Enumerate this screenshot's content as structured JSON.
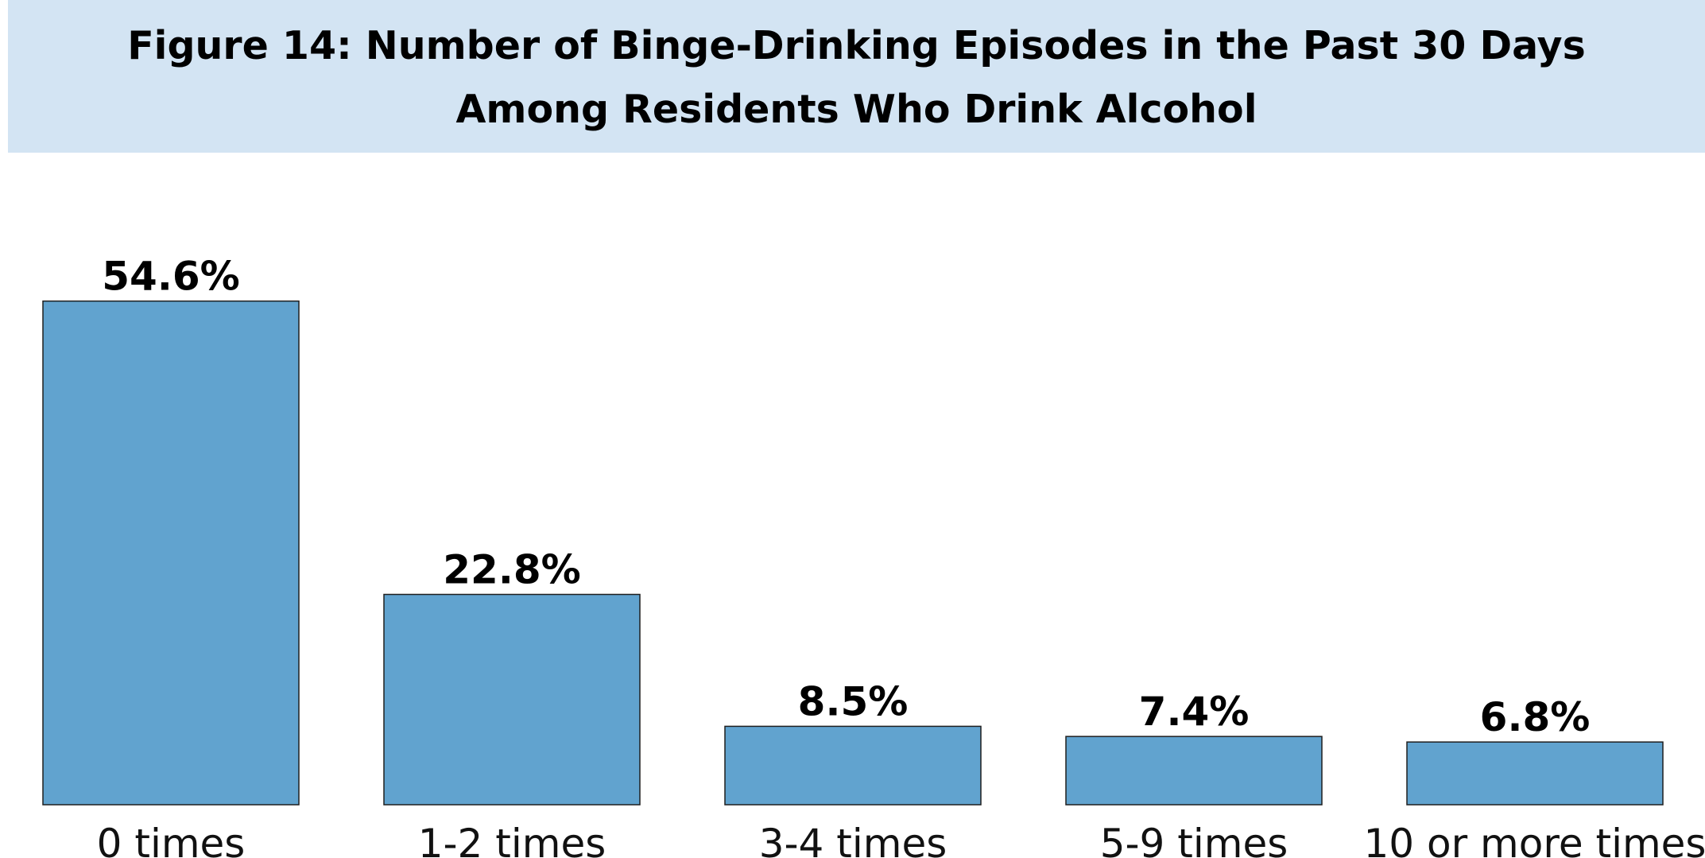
{
  "chart_data": {
    "type": "bar",
    "title": "Figure 14: Number of Binge-Drinking Episodes in the Past 30 Days Among Residents Who Drink Alcohol",
    "categories": [
      "0 times",
      "1-2 times",
      "3-4 times",
      "5-9 times",
      "10 or more times"
    ],
    "values": [
      54.6,
      22.8,
      8.5,
      7.4,
      6.8
    ],
    "data_labels": [
      "54.6%",
      "22.8%",
      "8.5%",
      "7.4%",
      "6.8%"
    ],
    "unit": "%",
    "ylim": [
      0,
      60
    ],
    "grid": false,
    "legend": "none",
    "bar_color": "#61a3cf",
    "bar_edge_color": "#1f1f1f",
    "title_background": "#d3e4f3"
  }
}
